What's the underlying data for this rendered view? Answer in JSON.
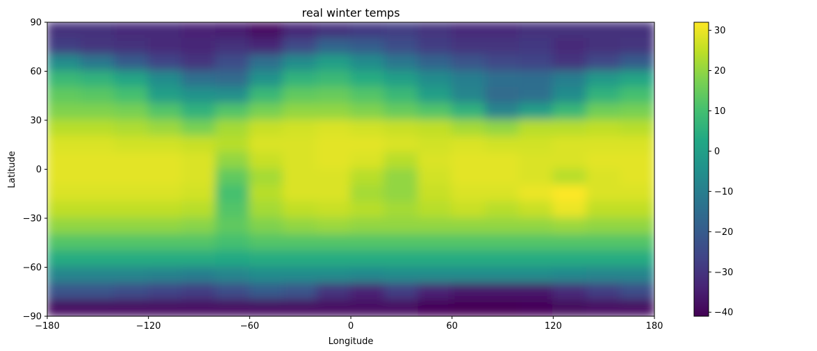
{
  "chart_data": {
    "type": "heatmap",
    "title": "real winter temps",
    "xlabel": "Longitude",
    "ylabel": "Latitude",
    "xlim": [
      -180,
      180
    ],
    "ylim": [
      -90,
      90
    ],
    "xticks": [
      -180,
      -120,
      -60,
      0,
      60,
      120,
      180
    ],
    "yticks": [
      -90,
      -60,
      -30,
      0,
      30,
      60,
      90
    ],
    "grid": false,
    "colormap": "viridis",
    "colorbar": {
      "range": [
        -41,
        32
      ],
      "ticks": [
        -40,
        -30,
        -20,
        -10,
        0,
        10,
        20,
        30
      ]
    },
    "value_grid": {
      "description_of_axes": "rows = latitude bands (north to south), columns = longitude bands (west to east), values in colorbar units",
      "lats": [
        85,
        75,
        65,
        55,
        45,
        35,
        25,
        15,
        5,
        -5,
        -15,
        -25,
        -35,
        -45,
        -55,
        -65,
        -75,
        -85
      ],
      "lons": [
        -170,
        -150,
        -130,
        -110,
        -90,
        -70,
        -50,
        -30,
        -10,
        10,
        30,
        50,
        70,
        90,
        110,
        130,
        150,
        170
      ],
      "values": [
        [
          -31,
          -31,
          -32,
          -32,
          -34,
          -35,
          -38,
          -33,
          -31,
          -29,
          -28,
          -30,
          -32,
          -32,
          -31,
          -31,
          -31,
          -31
        ],
        [
          -28,
          -30,
          -31,
          -32,
          -33,
          -31,
          -33,
          -25,
          -18,
          -20,
          -24,
          -28,
          -30,
          -30,
          -29,
          -32,
          -31,
          -30
        ],
        [
          -6,
          -12,
          -20,
          -26,
          -30,
          -24,
          -14,
          -6,
          0,
          -6,
          -12,
          -18,
          -22,
          -25,
          -26,
          -30,
          -25,
          -20
        ],
        [
          8,
          6,
          2,
          -6,
          -14,
          -16,
          -4,
          6,
          8,
          4,
          0,
          -6,
          -10,
          -14,
          -15,
          -10,
          -2,
          2
        ],
        [
          14,
          13,
          10,
          0,
          -4,
          -5,
          8,
          14,
          15,
          12,
          8,
          0,
          -8,
          -16,
          -14,
          -6,
          6,
          10
        ],
        [
          18,
          18,
          17,
          12,
          6,
          12,
          17,
          20,
          20,
          18,
          15,
          12,
          6,
          -8,
          0,
          8,
          16,
          17
        ],
        [
          24,
          24,
          23,
          21,
          17,
          22,
          26,
          27,
          28,
          27,
          26,
          25,
          22,
          20,
          24,
          24,
          25,
          24
        ],
        [
          28,
          28,
          27,
          27,
          26,
          24,
          28,
          28,
          29,
          29,
          28,
          27,
          28,
          27,
          27,
          28,
          28,
          28
        ],
        [
          29,
          29,
          29,
          29,
          28,
          20,
          26,
          28,
          29,
          28,
          24,
          28,
          29,
          29,
          28,
          28,
          29,
          29
        ],
        [
          29,
          29,
          29,
          29,
          28,
          14,
          22,
          28,
          28,
          24,
          20,
          27,
          29,
          29,
          28,
          24,
          28,
          29
        ],
        [
          28,
          28,
          28,
          28,
          27,
          10,
          24,
          28,
          28,
          22,
          20,
          26,
          28,
          28,
          30,
          32,
          28,
          28
        ],
        [
          25,
          25,
          25,
          25,
          24,
          12,
          22,
          25,
          26,
          24,
          22,
          24,
          26,
          24,
          26,
          30,
          25,
          25
        ],
        [
          20,
          20,
          20,
          20,
          19,
          14,
          18,
          20,
          21,
          20,
          20,
          20,
          20,
          20,
          20,
          21,
          20,
          20
        ],
        [
          12,
          12,
          12,
          12,
          12,
          10,
          12,
          12,
          12,
          12,
          12,
          12,
          12,
          12,
          12,
          12,
          12,
          12
        ],
        [
          4,
          4,
          4,
          4,
          4,
          3,
          4,
          4,
          4,
          4,
          4,
          4,
          4,
          4,
          4,
          4,
          4,
          4
        ],
        [
          -8,
          -8,
          -8,
          -9,
          -10,
          -8,
          -6,
          -6,
          -6,
          -7,
          -6,
          -6,
          -6,
          -6,
          -6,
          -7,
          -8,
          -8
        ],
        [
          -22,
          -22,
          -24,
          -26,
          -28,
          -24,
          -20,
          -22,
          -30,
          -34,
          -28,
          -34,
          -36,
          -36,
          -36,
          -32,
          -28,
          -24
        ],
        [
          -38,
          -38,
          -38,
          -38,
          -38,
          -38,
          -38,
          -38,
          -38,
          -38,
          -38,
          -40,
          -41,
          -41,
          -40,
          -39,
          -38,
          -38
        ]
      ]
    }
  }
}
